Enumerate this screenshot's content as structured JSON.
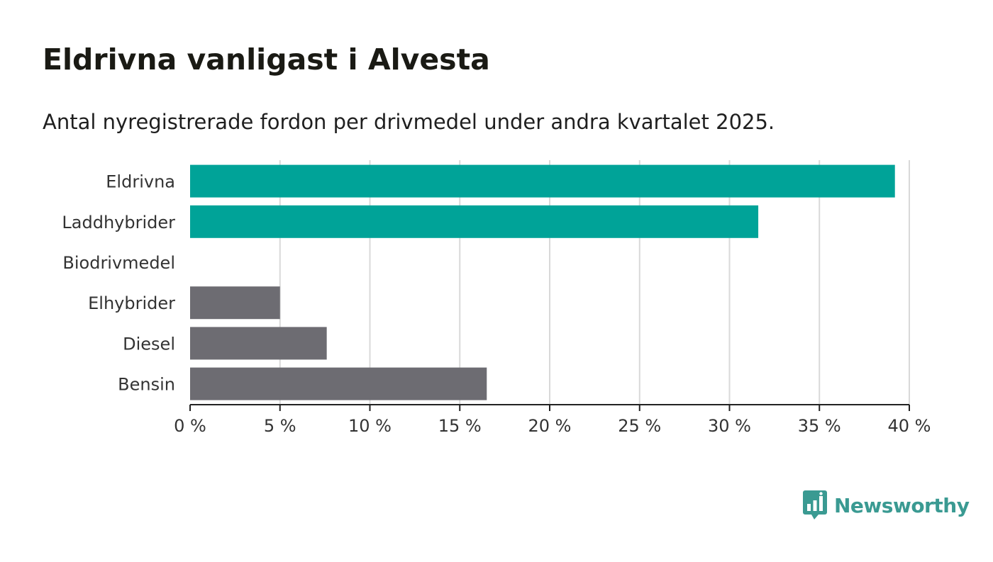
{
  "title": "Eldrivna vanligast i Alvesta",
  "subtitle": "Antal nyregistrerade fordon per drivmedel under andra kvartalet 2025.",
  "brand": {
    "name": "Newsworthy",
    "color": "#3a9a92",
    "icon": "bar-chart-speech-bubble-icon"
  },
  "colors": {
    "highlight": "#00a398",
    "other": "#6d6c72",
    "grid": "#d9d9d9",
    "axis": "#222222"
  },
  "chart_data": {
    "type": "bar",
    "orientation": "horizontal",
    "categories": [
      "Eldrivna",
      "Laddhybrider",
      "Biodrivmedel",
      "Elhybrider",
      "Diesel",
      "Bensin"
    ],
    "values": [
      39.2,
      31.6,
      0,
      5.0,
      7.6,
      16.5
    ],
    "highlighted": [
      true,
      true,
      false,
      false,
      false,
      false
    ],
    "xlim": [
      0,
      40
    ],
    "xticks": [
      0,
      5,
      10,
      15,
      20,
      25,
      30,
      35,
      40
    ],
    "xtick_labels": [
      "0 %",
      "5 %",
      "10 %",
      "15 %",
      "20 %",
      "25 %",
      "30 %",
      "35 %",
      "40 %"
    ],
    "grid": true,
    "xlabel": "",
    "ylabel": ""
  }
}
